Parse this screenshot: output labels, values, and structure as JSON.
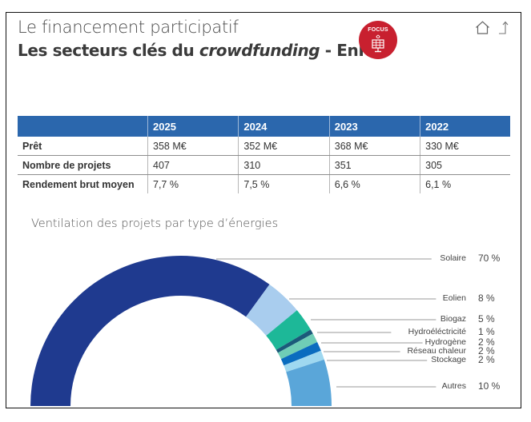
{
  "header": {
    "title_line1": "Le financement participatif",
    "title_line2_prefix": "Les secteurs clés du ",
    "title_line2_italic": "crowdfunding",
    "title_line2_suffix": " - EnR",
    "badge_label": "FOCUS",
    "badge_icon": "solar-panel-icon",
    "badge_color": "#c8202f",
    "nav_icons": [
      "home-icon",
      "share-icon"
    ]
  },
  "table": {
    "columns": [
      "",
      "2025",
      "2024",
      "2023",
      "2022"
    ],
    "rows": [
      {
        "label": "Prêt",
        "values": [
          "358 M€",
          "352 M€",
          "368 M€",
          "330 M€"
        ]
      },
      {
        "label": "Nombre de projets",
        "values": [
          "407",
          "310",
          "351",
          "305"
        ]
      },
      {
        "label": "Rendement brut moyen",
        "values": [
          "7,7 %",
          "7,5 %",
          "6,6 %",
          "6,1 %"
        ]
      }
    ],
    "header_color": "#2b67ad"
  },
  "chart_data": {
    "type": "pie",
    "subtype": "half-donut",
    "title": "Ventilation des projets par type d’énergies",
    "categories": [
      "Solaire",
      "Eolien",
      "Biogaz",
      "Hydroéléctricité",
      "Hydrogène",
      "Réseau chaleur",
      "Stockage",
      "Autres"
    ],
    "values": [
      70,
      8,
      5,
      1,
      2,
      2,
      2,
      10
    ],
    "value_labels": [
      "70 %",
      "8 %",
      "5 %",
      "1 %",
      "2 %",
      "2 %",
      "2 %",
      "10 %"
    ],
    "colors": [
      "#1f3a8f",
      "#a9cdee",
      "#1db898",
      "#1b5a7a",
      "#6fcdb6",
      "#0a6cbf",
      "#9fd8f0",
      "#5aa6d9"
    ],
    "unit": "%",
    "legend_position": "right"
  }
}
